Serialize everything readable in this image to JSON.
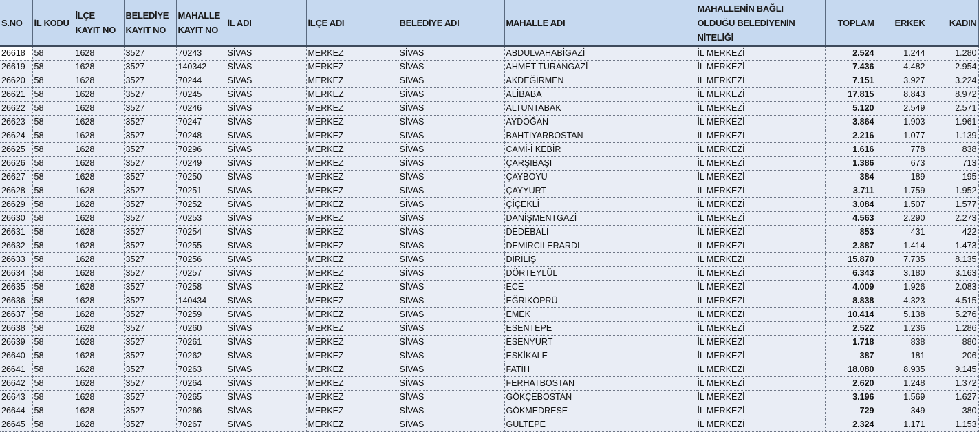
{
  "headers": [
    "S.NO",
    "İL KODU",
    "İLÇE KAYIT NO",
    "BELEDİYE KAYIT NO",
    "MAHALLE KAYIT NO",
    "İL ADI",
    "İLÇE ADI",
    "BELEDİYE ADI",
    "MAHALLE ADI",
    "MAHALLENİN BAĞLI OLDUĞU BELEDİYENİN NİTELİĞİ",
    "TOPLAM",
    "ERKEK",
    "KADIN"
  ],
  "rows": [
    [
      "26618",
      "58",
      "1628",
      "3527",
      "70243",
      "SİVAS",
      "MERKEZ",
      "SİVAS",
      "ABDULVAHABİGAZİ",
      "İL MERKEZİ",
      "2.524",
      "1.244",
      "1.280"
    ],
    [
      "26619",
      "58",
      "1628",
      "3527",
      "140342",
      "SİVAS",
      "MERKEZ",
      "SİVAS",
      "AHMET TURANGAZİ",
      "İL MERKEZİ",
      "7.436",
      "4.482",
      "2.954"
    ],
    [
      "26620",
      "58",
      "1628",
      "3527",
      "70244",
      "SİVAS",
      "MERKEZ",
      "SİVAS",
      "AKDEĞİRMEN",
      "İL MERKEZİ",
      "7.151",
      "3.927",
      "3.224"
    ],
    [
      "26621",
      "58",
      "1628",
      "3527",
      "70245",
      "SİVAS",
      "MERKEZ",
      "SİVAS",
      "ALİBABA",
      "İL MERKEZİ",
      "17.815",
      "8.843",
      "8.972"
    ],
    [
      "26622",
      "58",
      "1628",
      "3527",
      "70246",
      "SİVAS",
      "MERKEZ",
      "SİVAS",
      "ALTUNTABAK",
      "İL MERKEZİ",
      "5.120",
      "2.549",
      "2.571"
    ],
    [
      "26623",
      "58",
      "1628",
      "3527",
      "70247",
      "SİVAS",
      "MERKEZ",
      "SİVAS",
      "AYDOĞAN",
      "İL MERKEZİ",
      "3.864",
      "1.903",
      "1.961"
    ],
    [
      "26624",
      "58",
      "1628",
      "3527",
      "70248",
      "SİVAS",
      "MERKEZ",
      "SİVAS",
      "BAHTİYARBOSTAN",
      "İL MERKEZİ",
      "2.216",
      "1.077",
      "1.139"
    ],
    [
      "26625",
      "58",
      "1628",
      "3527",
      "70296",
      "SİVAS",
      "MERKEZ",
      "SİVAS",
      "CAMİ-İ KEBİR",
      "İL MERKEZİ",
      "1.616",
      "778",
      "838"
    ],
    [
      "26626",
      "58",
      "1628",
      "3527",
      "70249",
      "SİVAS",
      "MERKEZ",
      "SİVAS",
      "ÇARŞIBAŞI",
      "İL MERKEZİ",
      "1.386",
      "673",
      "713"
    ],
    [
      "26627",
      "58",
      "1628",
      "3527",
      "70250",
      "SİVAS",
      "MERKEZ",
      "SİVAS",
      "ÇAYBOYU",
      "İL MERKEZİ",
      "384",
      "189",
      "195"
    ],
    [
      "26628",
      "58",
      "1628",
      "3527",
      "70251",
      "SİVAS",
      "MERKEZ",
      "SİVAS",
      "ÇAYYURT",
      "İL MERKEZİ",
      "3.711",
      "1.759",
      "1.952"
    ],
    [
      "26629",
      "58",
      "1628",
      "3527",
      "70252",
      "SİVAS",
      "MERKEZ",
      "SİVAS",
      "ÇİÇEKLİ",
      "İL MERKEZİ",
      "3.084",
      "1.507",
      "1.577"
    ],
    [
      "26630",
      "58",
      "1628",
      "3527",
      "70253",
      "SİVAS",
      "MERKEZ",
      "SİVAS",
      "DANİŞMENTGAZİ",
      "İL MERKEZİ",
      "4.563",
      "2.290",
      "2.273"
    ],
    [
      "26631",
      "58",
      "1628",
      "3527",
      "70254",
      "SİVAS",
      "MERKEZ",
      "SİVAS",
      "DEDEBALI",
      "İL MERKEZİ",
      "853",
      "431",
      "422"
    ],
    [
      "26632",
      "58",
      "1628",
      "3527",
      "70255",
      "SİVAS",
      "MERKEZ",
      "SİVAS",
      "DEMİRCİLERARDI",
      "İL MERKEZİ",
      "2.887",
      "1.414",
      "1.473"
    ],
    [
      "26633",
      "58",
      "1628",
      "3527",
      "70256",
      "SİVAS",
      "MERKEZ",
      "SİVAS",
      "DİRİLİŞ",
      "İL MERKEZİ",
      "15.870",
      "7.735",
      "8.135"
    ],
    [
      "26634",
      "58",
      "1628",
      "3527",
      "70257",
      "SİVAS",
      "MERKEZ",
      "SİVAS",
      "DÖRTEYLÜL",
      "İL MERKEZİ",
      "6.343",
      "3.180",
      "3.163"
    ],
    [
      "26635",
      "58",
      "1628",
      "3527",
      "70258",
      "SİVAS",
      "MERKEZ",
      "SİVAS",
      "ECE",
      "İL MERKEZİ",
      "4.009",
      "1.926",
      "2.083"
    ],
    [
      "26636",
      "58",
      "1628",
      "3527",
      "140434",
      "SİVAS",
      "MERKEZ",
      "SİVAS",
      "EĞRİKÖPRÜ",
      "İL MERKEZİ",
      "8.838",
      "4.323",
      "4.515"
    ],
    [
      "26637",
      "58",
      "1628",
      "3527",
      "70259",
      "SİVAS",
      "MERKEZ",
      "SİVAS",
      "EMEK",
      "İL MERKEZİ",
      "10.414",
      "5.138",
      "5.276"
    ],
    [
      "26638",
      "58",
      "1628",
      "3527",
      "70260",
      "SİVAS",
      "MERKEZ",
      "SİVAS",
      "ESENTEPE",
      "İL MERKEZİ",
      "2.522",
      "1.236",
      "1.286"
    ],
    [
      "26639",
      "58",
      "1628",
      "3527",
      "70261",
      "SİVAS",
      "MERKEZ",
      "SİVAS",
      "ESENYURT",
      "İL MERKEZİ",
      "1.718",
      "838",
      "880"
    ],
    [
      "26640",
      "58",
      "1628",
      "3527",
      "70262",
      "SİVAS",
      "MERKEZ",
      "SİVAS",
      "ESKİKALE",
      "İL MERKEZİ",
      "387",
      "181",
      "206"
    ],
    [
      "26641",
      "58",
      "1628",
      "3527",
      "70263",
      "SİVAS",
      "MERKEZ",
      "SİVAS",
      "FATİH",
      "İL MERKEZİ",
      "18.080",
      "8.935",
      "9.145"
    ],
    [
      "26642",
      "58",
      "1628",
      "3527",
      "70264",
      "SİVAS",
      "MERKEZ",
      "SİVAS",
      "FERHATBOSTAN",
      "İL MERKEZİ",
      "2.620",
      "1.248",
      "1.372"
    ],
    [
      "26643",
      "58",
      "1628",
      "3527",
      "70265",
      "SİVAS",
      "MERKEZ",
      "SİVAS",
      "GÖKÇEBOSTAN",
      "İL MERKEZİ",
      "3.196",
      "1.569",
      "1.627"
    ],
    [
      "26644",
      "58",
      "1628",
      "3527",
      "70266",
      "SİVAS",
      "MERKEZ",
      "SİVAS",
      "GÖKMEDRESE",
      "İL MERKEZİ",
      "729",
      "349",
      "380"
    ],
    [
      "26645",
      "58",
      "1628",
      "3527",
      "70267",
      "SİVAS",
      "MERKEZ",
      "SİVAS",
      "GÜLTEPE",
      "İL MERKEZİ",
      "2.324",
      "1.171",
      "1.153"
    ]
  ]
}
